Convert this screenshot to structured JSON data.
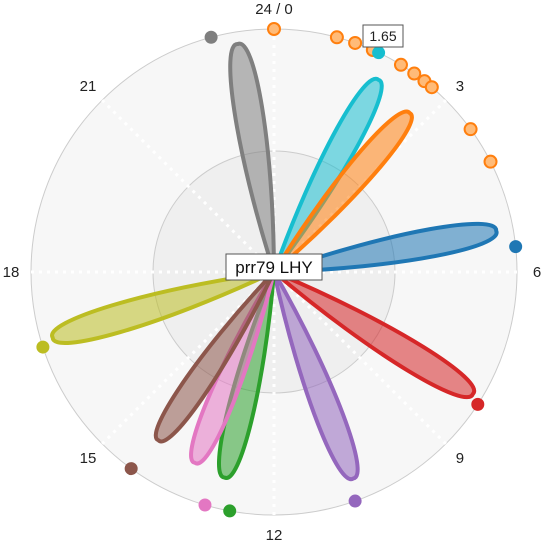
{
  "chart_data": {
    "type": "polar-petal",
    "center_label": "prr79 LHY",
    "value_label": "1.65",
    "angular_axis": {
      "period": 24,
      "ticks": [
        {
          "value": 0,
          "label": "24 / 0"
        },
        {
          "value": 3,
          "label": "3"
        },
        {
          "value": 6,
          "label": "6"
        },
        {
          "value": 9,
          "label": "9"
        },
        {
          "value": 12,
          "label": "12"
        },
        {
          "value": 15,
          "label": "15"
        },
        {
          "value": 18,
          "label": "18"
        },
        {
          "value": 21,
          "label": "21"
        }
      ]
    },
    "radial_range": [
      0,
      1
    ],
    "grid": true,
    "petals": [
      {
        "phase": 1.9,
        "amplitude": 0.9,
        "color": "#17becf"
      },
      {
        "phase": 2.7,
        "amplitude": 0.86,
        "color": "#ff7f0e"
      },
      {
        "phase": 5.3,
        "amplitude": 0.93,
        "color": "#1f77b4"
      },
      {
        "phase": 8.1,
        "amplitude": 0.96,
        "color": "#d62728"
      },
      {
        "phase": 10.6,
        "amplitude": 0.91,
        "color": "#9467bd"
      },
      {
        "phase": 12.9,
        "amplitude": 0.87,
        "color": "#2ca02c"
      },
      {
        "phase": 13.5,
        "amplitude": 0.85,
        "color": "#e377c2"
      },
      {
        "phase": 14.3,
        "amplitude": 0.84,
        "color": "#8c564b"
      },
      {
        "phase": 16.9,
        "amplitude": 0.95,
        "color": "#bcbd22"
      },
      {
        "phase": 23.4,
        "amplitude": 0.95,
        "color": "#7f7f7f"
      }
    ],
    "rim_markers": [
      {
        "phase": 0.0,
        "color": "#ff7f0e"
      },
      {
        "phase": 1.0,
        "color": "#ff7f0e"
      },
      {
        "phase": 1.3,
        "color": "#ff7f0e"
      },
      {
        "phase": 1.6,
        "color": "#ff7f0e"
      },
      {
        "phase": 2.1,
        "color": "#ff7f0e"
      },
      {
        "phase": 2.35,
        "color": "#ff7f0e"
      },
      {
        "phase": 2.55,
        "color": "#ff7f0e"
      },
      {
        "phase": 2.7,
        "color": "#ff7f0e"
      },
      {
        "phase": 3.6,
        "color": "#ff7f0e"
      },
      {
        "phase": 4.2,
        "color": "#ff7f0e"
      },
      {
        "phase": 1.7,
        "color": "#17becf"
      },
      {
        "phase": 5.6,
        "color": "#1f77b4"
      },
      {
        "phase": 8.2,
        "color": "#d62728"
      },
      {
        "phase": 10.7,
        "color": "#9467bd"
      },
      {
        "phase": 12.7,
        "color": "#2ca02c"
      },
      {
        "phase": 13.1,
        "color": "#e377c2"
      },
      {
        "phase": 14.4,
        "color": "#8c564b"
      },
      {
        "phase": 16.8,
        "color": "#bcbd22"
      },
      {
        "phase": 23.0,
        "color": "#7f7f7f"
      }
    ]
  }
}
